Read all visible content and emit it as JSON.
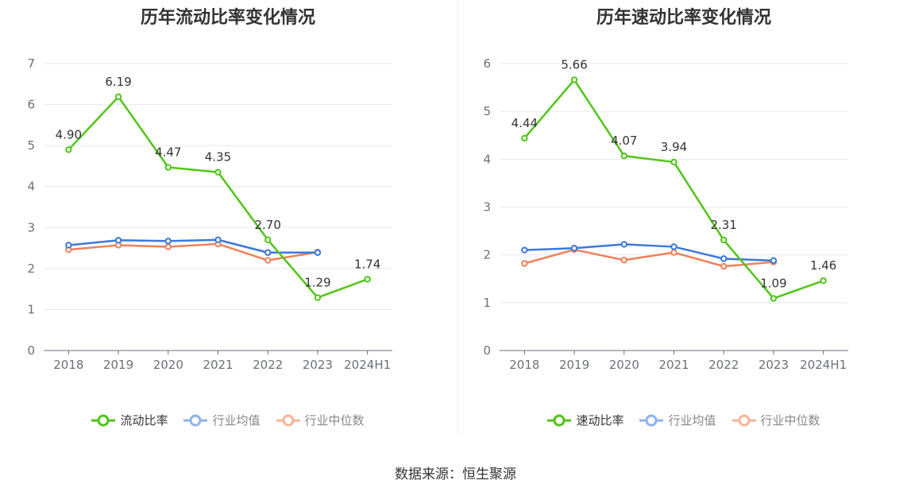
{
  "chart_data": [
    {
      "type": "line",
      "title": "历年流动比率变化情况",
      "categories": [
        "2018",
        "2019",
        "2020",
        "2021",
        "2022",
        "2023",
        "2024H1"
      ],
      "ylim": [
        0,
        7
      ],
      "yticks": [
        "0",
        "1",
        "2",
        "3",
        "4",
        "5",
        "6",
        "7"
      ],
      "series": [
        {
          "name": "流动比率",
          "color": "#52c41a",
          "values": [
            4.9,
            6.19,
            4.47,
            4.35,
            2.7,
            1.29,
            1.74
          ],
          "labels": [
            "4.90",
            "6.19",
            "4.47",
            "4.35",
            "2.70",
            "1.29",
            "1.74"
          ]
        },
        {
          "name": "行业均值",
          "color": "#3c78d8",
          "values": [
            2.57,
            2.69,
            2.67,
            2.7,
            2.39,
            2.39,
            null
          ]
        },
        {
          "name": "行业中位数",
          "color": "#f0805a",
          "values": [
            2.46,
            2.57,
            2.53,
            2.6,
            2.2,
            2.4,
            null
          ]
        }
      ]
    },
    {
      "type": "line",
      "title": "历年速动比率变化情况",
      "categories": [
        "2018",
        "2019",
        "2020",
        "2021",
        "2022",
        "2023",
        "2024H1"
      ],
      "ylim": [
        0,
        6
      ],
      "yticks": [
        "0",
        "1",
        "2",
        "3",
        "4",
        "5",
        "6"
      ],
      "series": [
        {
          "name": "速动比率",
          "color": "#52c41a",
          "values": [
            4.44,
            5.66,
            4.07,
            3.94,
            2.31,
            1.09,
            1.46
          ],
          "labels": [
            "4.44",
            "5.66",
            "4.07",
            "3.94",
            "2.31",
            "1.09",
            "1.46"
          ]
        },
        {
          "name": "行业均值",
          "color": "#3c78d8",
          "values": [
            2.1,
            2.14,
            2.22,
            2.17,
            1.92,
            1.88,
            null
          ]
        },
        {
          "name": "行业中位数",
          "color": "#f0805a",
          "values": [
            1.82,
            2.11,
            1.89,
            2.05,
            1.76,
            1.85,
            null
          ]
        }
      ]
    }
  ],
  "legend_colors": {
    "primary": "#52c41a",
    "mean": "#8fb1ee",
    "median": "#f7b49b"
  },
  "source": "数据来源：恒生聚源"
}
